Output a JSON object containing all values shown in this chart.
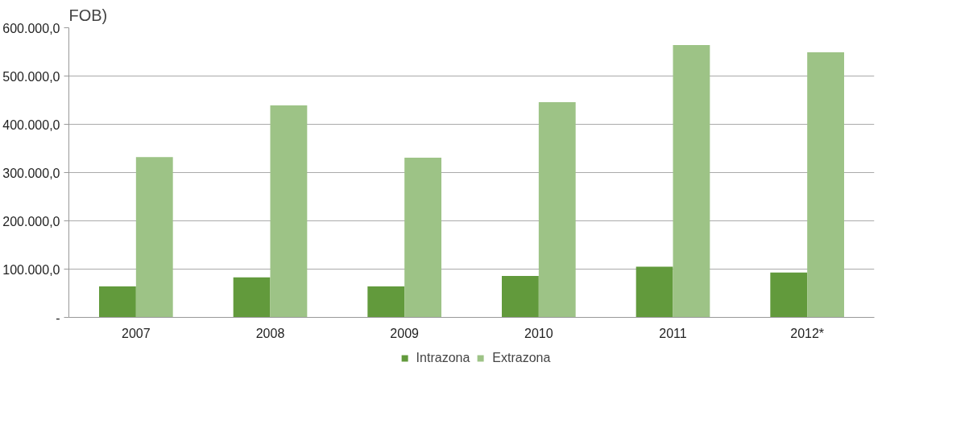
{
  "chart_data": {
    "type": "bar",
    "title": "FOB)",
    "categories": [
      "2007",
      "2008",
      "2009",
      "2010",
      "2011",
      "2012*"
    ],
    "series": [
      {
        "name": "Intrazona",
        "color": "#629a3c",
        "values": [
          64000,
          83000,
          64000,
          86000,
          105000,
          93000
        ]
      },
      {
        "name": "Extrazona",
        "color": "#9dc386",
        "values": [
          332000,
          439000,
          331000,
          446000,
          564000,
          549000
        ]
      }
    ],
    "ylim": [
      0,
      600000
    ],
    "yticks": [
      {
        "value": 0,
        "label": "-"
      },
      {
        "value": 100000,
        "label": "100.000,0"
      },
      {
        "value": 200000,
        "label": "200.000,0"
      },
      {
        "value": 300000,
        "label": "300.000,0"
      },
      {
        "value": 400000,
        "label": "400.000,0"
      },
      {
        "value": 500000,
        "label": "500.000,0"
      },
      {
        "value": 600000,
        "label": "600.000,0"
      }
    ],
    "grid": "y",
    "legend": "bottom"
  }
}
